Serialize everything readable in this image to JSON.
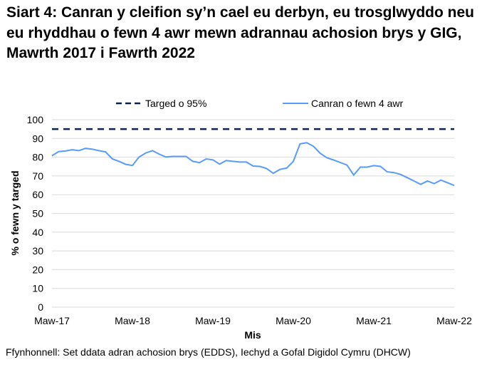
{
  "chart_data": {
    "type": "line",
    "title": "Siart 4: Canran y cleifion sy’n cael eu derbyn, eu trosglwyddo neu eu rhyddhau o fewn 4 awr mewn adrannau achosion brys y GIG, Mawrth 2017 i Fawrth 2022",
    "xlabel": "Mis",
    "ylabel": "% o fewn y targed",
    "ylim": [
      0,
      100
    ],
    "yticks": [
      0,
      10,
      20,
      30,
      40,
      50,
      60,
      70,
      80,
      90,
      100
    ],
    "xtick_labels": [
      "Maw-17",
      "Maw-18",
      "Maw-19",
      "Maw-20",
      "Maw-21",
      "Maw-22"
    ],
    "grid": true,
    "legend_placement": "top",
    "series": [
      {
        "name": "Targed o 95%",
        "style": "dashed",
        "color": "#0b2152",
        "values": [
          95
        ]
      },
      {
        "name": "Canran o fewn 4 awr",
        "style": "solid",
        "color": "#579bfc",
        "start": "Maw-17",
        "end": "Maw-22",
        "frequency": "monthly",
        "values": [
          80.8,
          83.0,
          83.3,
          84.0,
          83.5,
          84.7,
          84.3,
          83.5,
          82.8,
          79.1,
          77.8,
          76.2,
          75.6,
          80.1,
          82.3,
          83.5,
          81.6,
          80.1,
          80.4,
          80.4,
          80.4,
          77.8,
          77.1,
          79.1,
          78.6,
          76.3,
          78.2,
          77.8,
          77.4,
          77.4,
          75.3,
          75.1,
          74.0,
          71.4,
          73.5,
          74.2,
          77.8,
          87.1,
          87.7,
          85.8,
          82.1,
          79.7,
          78.5,
          77.2,
          75.8,
          70.5,
          74.7,
          74.7,
          75.5,
          75.1,
          72.2,
          71.8,
          70.8,
          69.1,
          67.3,
          65.5,
          67.3,
          65.9,
          67.8,
          66.4,
          64.9
        ]
      }
    ]
  },
  "source": "Ffynhonnell: Set ddata adran achosion brys (EDDS), Iechyd a Gofal Digidol Cymru (DHCW)"
}
